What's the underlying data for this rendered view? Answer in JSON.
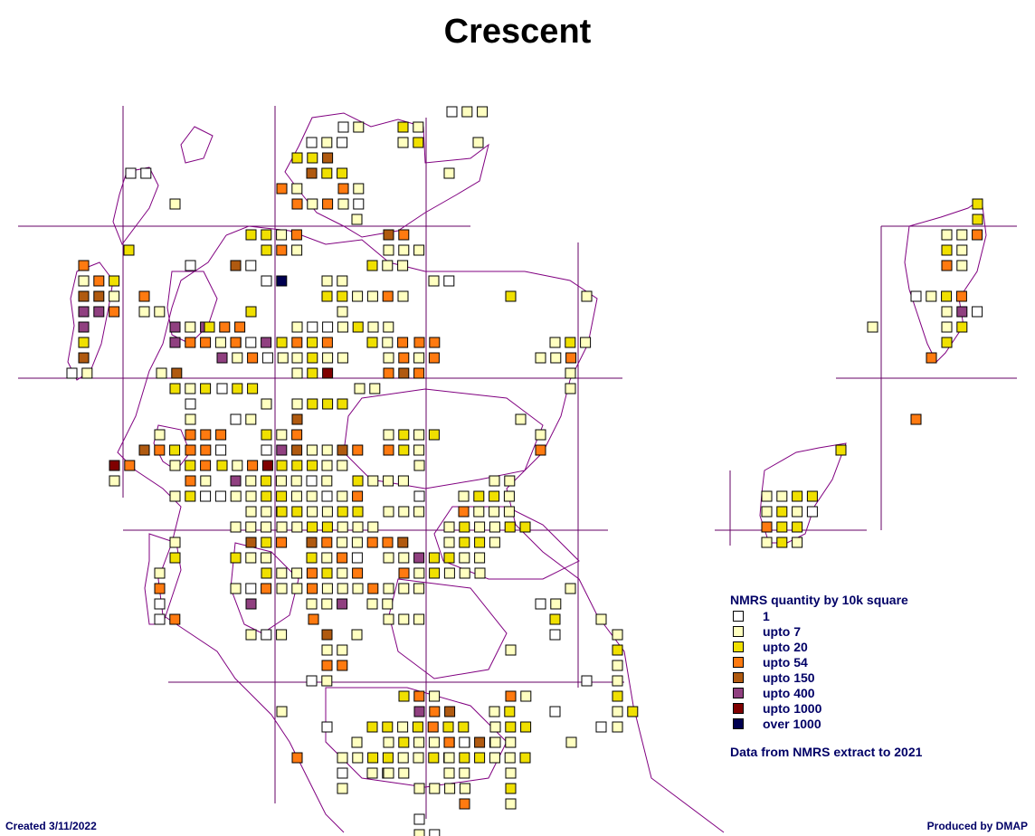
{
  "title": "Crescent",
  "colors": {
    "coast": "#800080",
    "grid": "#660066",
    "text": "#000066",
    "bins": [
      "#ffffff",
      "#ffffc0",
      "#f0e000",
      "#ff7a10",
      "#b05a10",
      "#904080",
      "#800000",
      "#000050"
    ]
  },
  "legend": {
    "title": "NMRS quantity by 10k square",
    "items": [
      {
        "label": "1",
        "color": "#ffffff"
      },
      {
        "label": "upto 7",
        "color": "#ffffc0"
      },
      {
        "label": "upto 20",
        "color": "#f0e000"
      },
      {
        "label": "upto 54",
        "color": "#ff7a10"
      },
      {
        "label": "upto 150",
        "color": "#b05a10"
      },
      {
        "label": "upto 400",
        "color": "#904080"
      },
      {
        "label": "upto 1000",
        "color": "#800000"
      },
      {
        "label": "over 1000",
        "color": "#000050"
      }
    ]
  },
  "source_note": "Data from NMRS extract to 2021",
  "created": "Created 3/11/2022",
  "produced": "Produced by DMAP"
}
